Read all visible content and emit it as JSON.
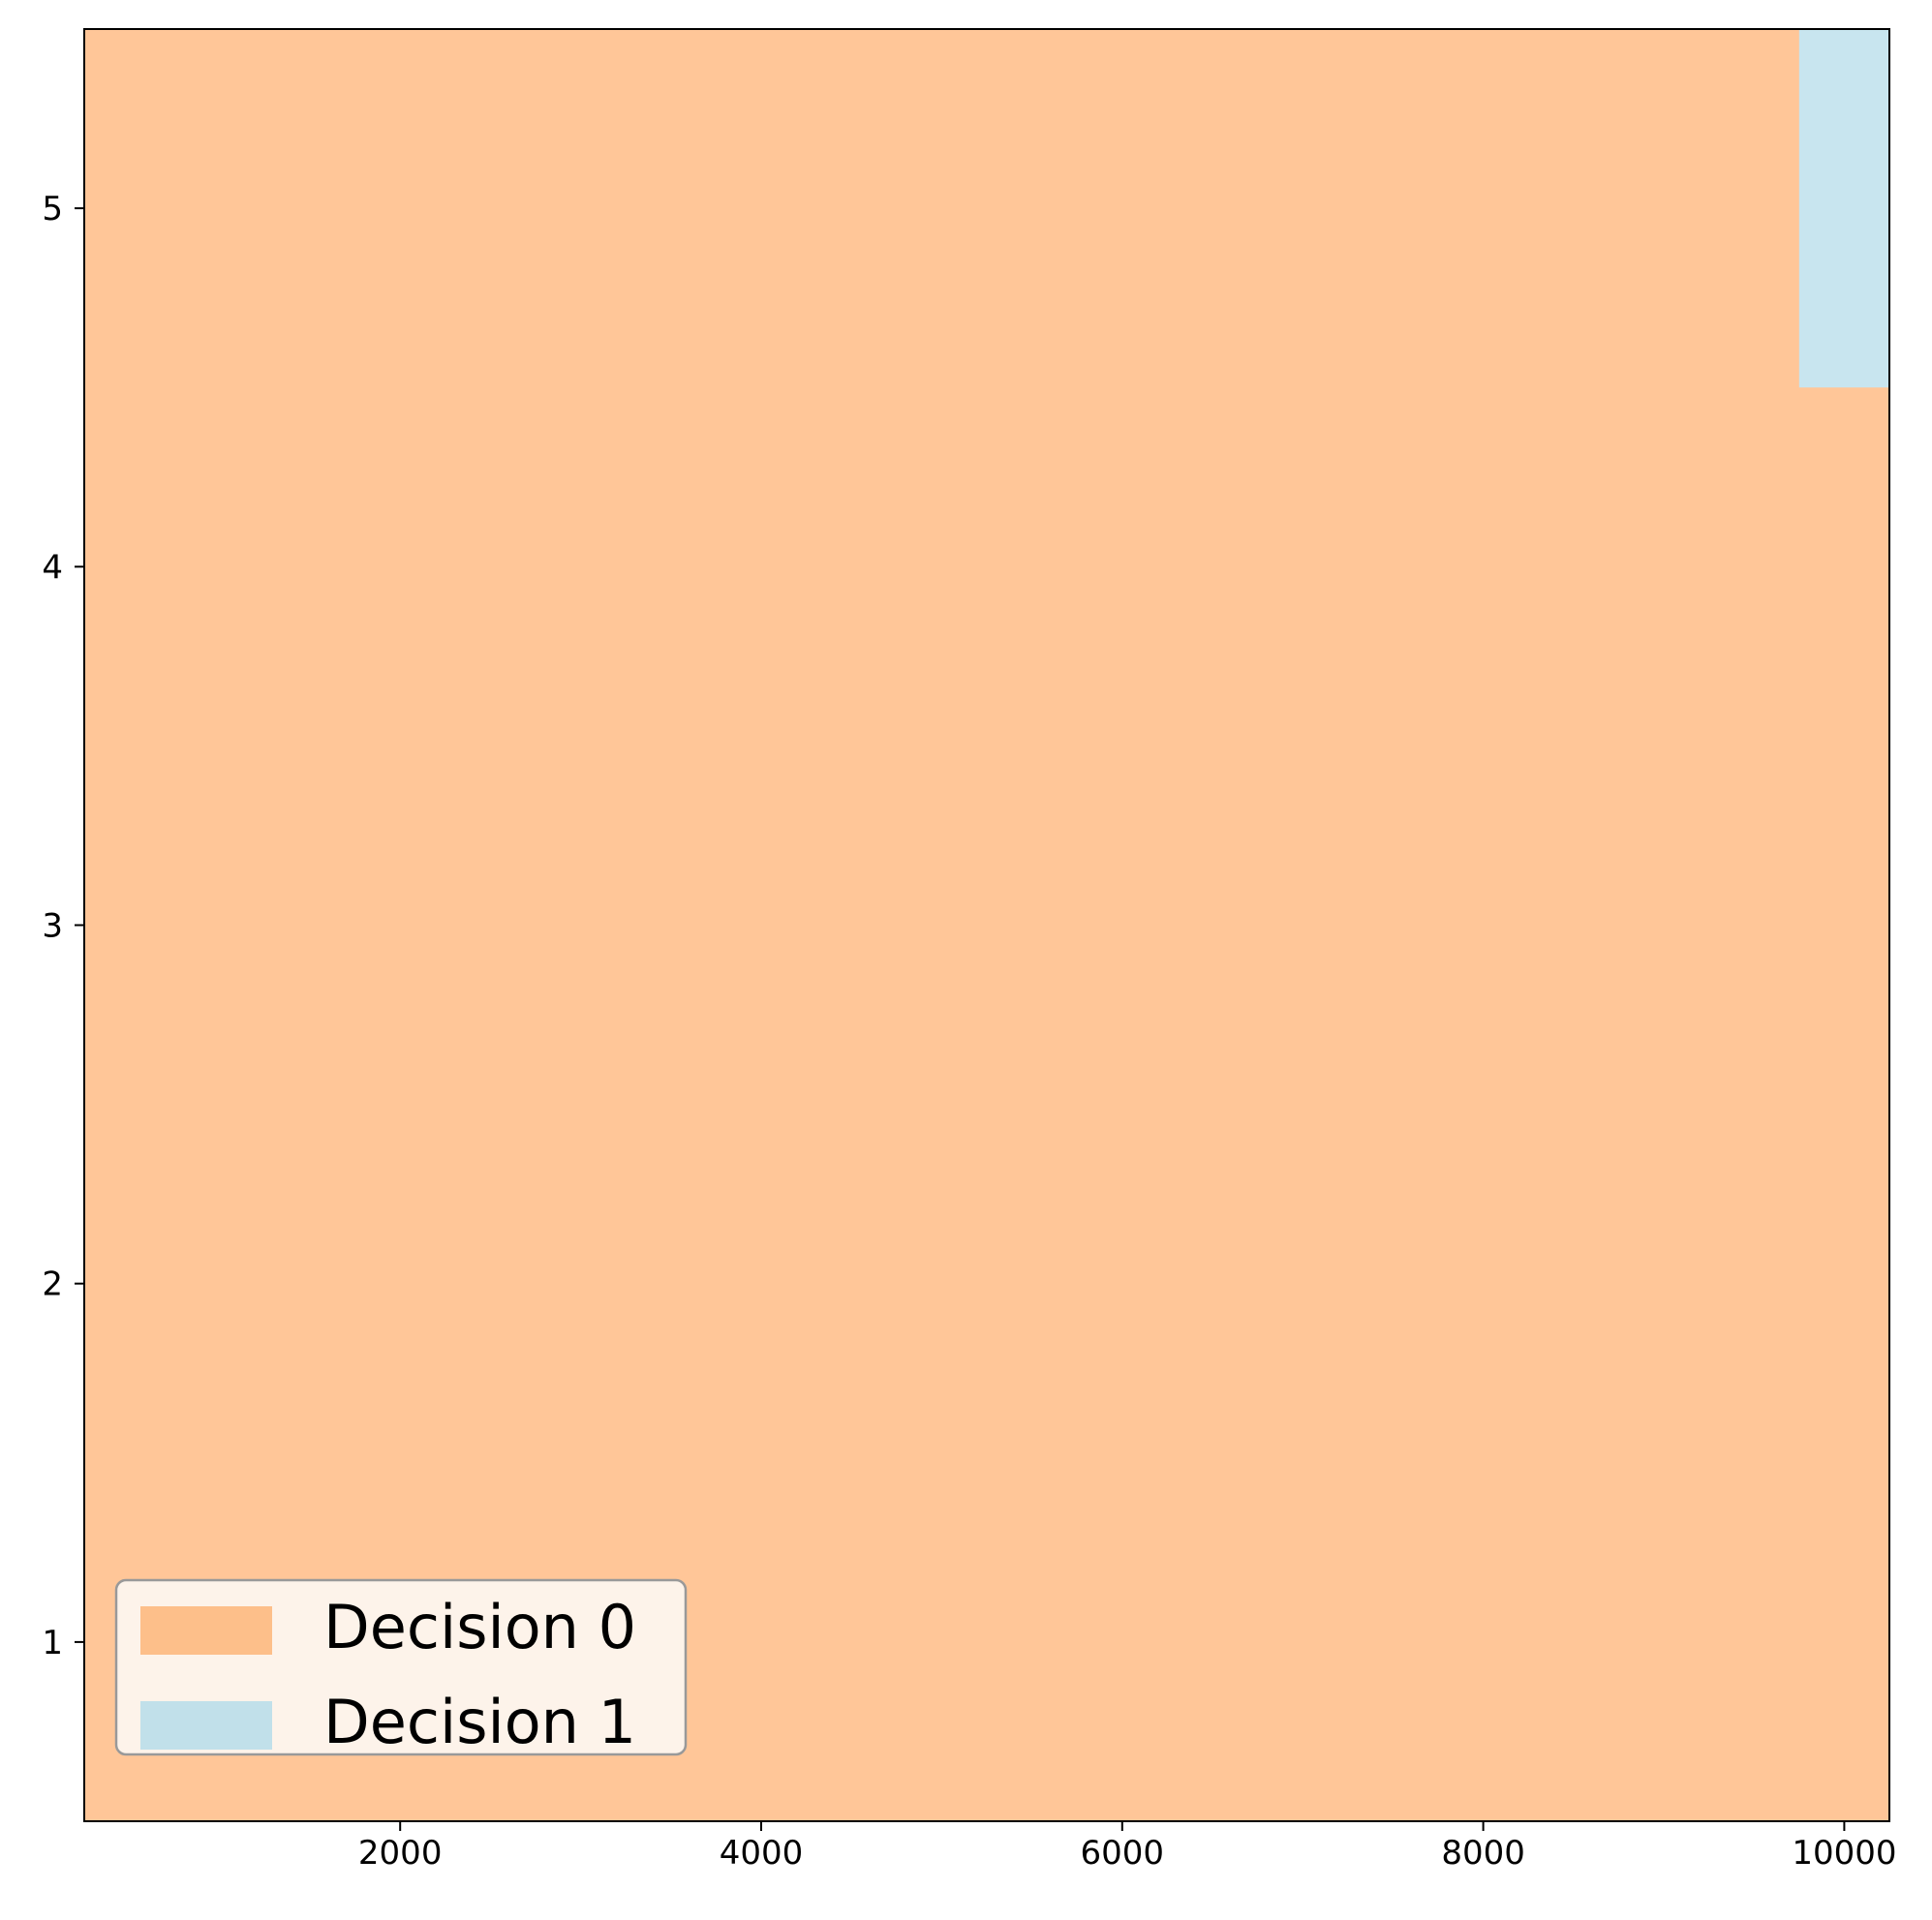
{
  "chart_data": {
    "type": "heatmap",
    "title": "",
    "xlabel": "",
    "ylabel": "",
    "xlim": [
      250,
      10250
    ],
    "ylim": [
      0.5,
      5.5
    ],
    "x_ticks": [
      2000,
      4000,
      6000,
      8000,
      10000
    ],
    "y_ticks": [
      1,
      2,
      3,
      4,
      5
    ],
    "grid": false,
    "legend_position": "lower-left",
    "legend": [
      {
        "label": "Decision 0",
        "color": "#fdbf8a"
      },
      {
        "label": "Decision 1",
        "color": "#c1e0ea"
      }
    ],
    "regions": [
      {
        "decision": 0,
        "x": [
          250,
          10250
        ],
        "y": [
          0.5,
          5.5
        ],
        "color": "#ffc698"
      },
      {
        "decision": 1,
        "x": [
          9750,
          10250
        ],
        "y": [
          4.5,
          5.5
        ],
        "color": "#c8e5ef"
      }
    ]
  }
}
